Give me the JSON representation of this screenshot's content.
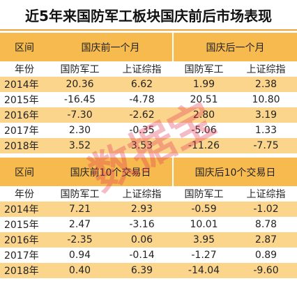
{
  "title": "近5年来国防军工板块国庆前后市场表现",
  "watermark": "数据宝",
  "tables": [
    {
      "label": "区间",
      "groups": [
        "国庆前一个月",
        "国庆后一个月"
      ],
      "subheaders": [
        "年份",
        "国防军工",
        "上证综指",
        "国防军工",
        "上证综指"
      ],
      "rows": [
        [
          "2014年",
          "20.36",
          "6.62",
          "1.99",
          "2.38"
        ],
        [
          "2015年",
          "-16.45",
          "-4.78",
          "20.51",
          "10.80"
        ],
        [
          "2016年",
          "-7.30",
          "-2.62",
          "2.80",
          "3.19"
        ],
        [
          "2017年",
          "2.30",
          "-0.35",
          "-5.06",
          "1.33"
        ],
        [
          "2018年",
          "3.52",
          "3.53",
          "-11.26",
          "-7.75"
        ]
      ]
    },
    {
      "label": "区间",
      "groups": [
        "国庆前10个交易日",
        "国庆后10个交易日"
      ],
      "subheaders": [
        "年份",
        "国防军工",
        "上证综指",
        "国防军工",
        "上证综指"
      ],
      "rows": [
        [
          "2014年",
          "7.21",
          "2.93",
          "-0.59",
          "-1.02"
        ],
        [
          "2015年",
          "2.47",
          "-3.16",
          "10.01",
          "8.78"
        ],
        [
          "2016年",
          "-2.35",
          "0.06",
          "3.95",
          "2.87"
        ],
        [
          "2017年",
          "0.94",
          "-0.14",
          "-1.27",
          "0.89"
        ],
        [
          "2018年",
          "0.40",
          "6.39",
          "-14.04",
          "-9.60"
        ]
      ]
    }
  ]
}
